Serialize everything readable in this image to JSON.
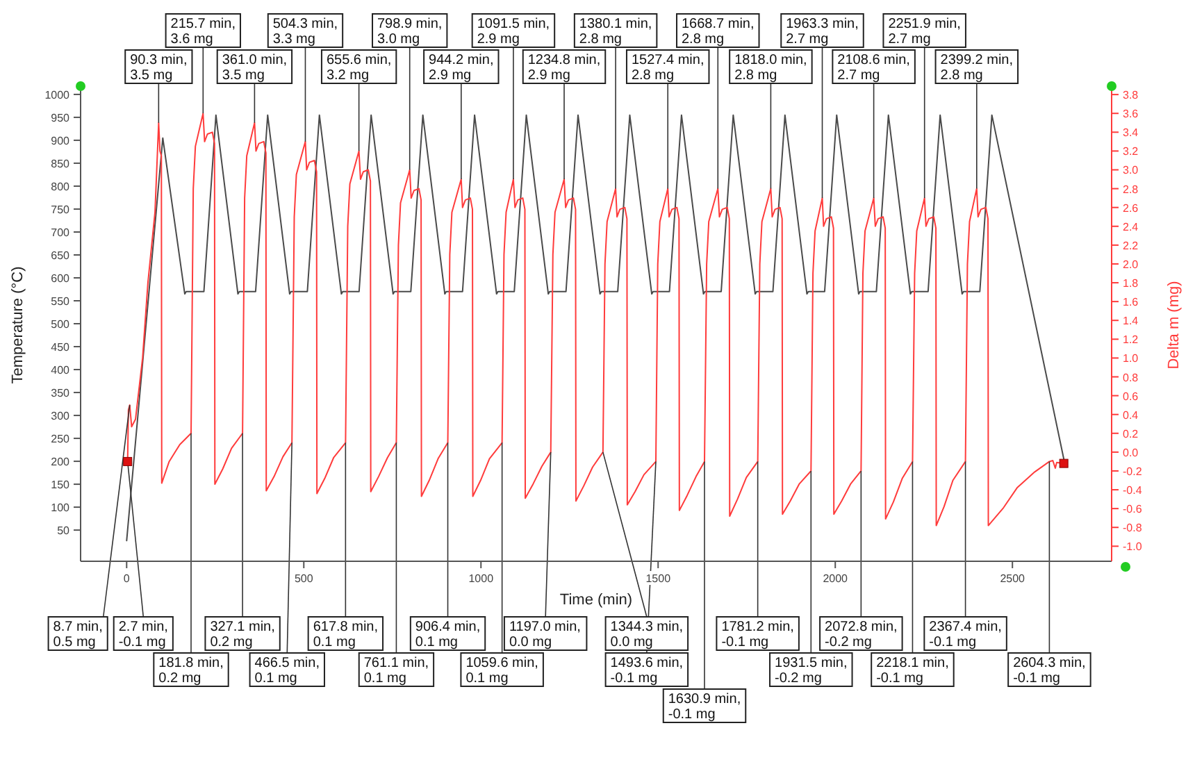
{
  "chart_data": {
    "type": "line",
    "xlabel": "Time (min)",
    "ylabel": "Temperature (°C)",
    "y2label": "Delta m (mg)",
    "xlim": [
      -130,
      2780
    ],
    "ylim": [
      -18,
      1012
    ],
    "y2lim": [
      -1.16,
      3.86
    ],
    "xticks": [
      0,
      500,
      1000,
      1500,
      2000,
      2500
    ],
    "yticks": [
      50,
      100,
      150,
      200,
      250,
      300,
      350,
      400,
      450,
      500,
      550,
      600,
      650,
      700,
      750,
      800,
      850,
      900,
      950,
      1000
    ],
    "y2ticks": [
      {
        "value": -1,
        "label": "-1.0"
      },
      -0.8,
      -0.6,
      -0.4,
      -0.2,
      {
        "value": 0,
        "label": "0.0"
      },
      0.2,
      0.4,
      0.6,
      0.8,
      {
        "value": 1,
        "label": "1.0"
      },
      1.2,
      1.4,
      1.6,
      1.8,
      {
        "value": 2,
        "label": "2.0"
      },
      2.2,
      2.4,
      2.6,
      2.8,
      {
        "value": 3,
        "label": "3.0"
      },
      3.2,
      3.4,
      3.6,
      3.8
    ],
    "series": [
      {
        "color": "#4a4a4a",
        "x": [
          0,
          102,
          164,
          168,
          218,
          252,
          314,
          318,
          364,
          398,
          460,
          464,
          510,
          544,
          606,
          610,
          656,
          690,
          752,
          756,
          802,
          836,
          898,
          902,
          948,
          982,
          1044,
          1048,
          1094,
          1128,
          1190,
          1194,
          1240,
          1274,
          1336,
          1340,
          1386,
          1420,
          1482,
          1486,
          1532,
          1566,
          1628,
          1632,
          1678,
          1712,
          1774,
          1778,
          1824,
          1858,
          1920,
          1924,
          1970,
          2004,
          2066,
          2070,
          2116,
          2150,
          2212,
          2216,
          2262,
          2296,
          2358,
          2362,
          2408,
          2442,
          2645
        ],
        "values": [
          27,
          905,
          565,
          570,
          570,
          955,
          565,
          570,
          570,
          955,
          565,
          570,
          570,
          955,
          565,
          570,
          570,
          955,
          565,
          570,
          570,
          955,
          565,
          570,
          570,
          955,
          565,
          570,
          570,
          955,
          565,
          570,
          570,
          955,
          565,
          570,
          570,
          955,
          565,
          570,
          570,
          955,
          565,
          570,
          570,
          955,
          565,
          570,
          570,
          955,
          565,
          570,
          570,
          955,
          565,
          570,
          570,
          955,
          565,
          570,
          570,
          955,
          565,
          570,
          570,
          955,
          205
        ]
      },
      {
        "axis": "y2",
        "color": "#ff3b3b",
        "x": [
          2.7,
          5,
          8.7,
          14,
          25,
          45,
          60,
          80,
          90.3,
          94,
          98,
          99,
          120,
          150,
          181.8,
          188,
          194,
          215.7,
          220,
          228,
          242,
          248,
          249,
          271,
          296,
          327.1,
          333,
          339,
          361.0,
          365,
          373,
          387,
          393,
          394,
          416,
          441,
          466.5,
          473,
          479,
          504.3,
          508,
          516,
          530,
          536,
          537,
          559,
          584,
          617.8,
          624,
          630,
          655.6,
          660,
          668,
          682,
          688,
          689,
          711,
          736,
          761.1,
          767,
          773,
          798.9,
          803,
          811,
          825,
          831,
          832,
          854,
          879,
          906.4,
          912,
          918,
          944.2,
          948,
          956,
          970,
          976,
          977,
          999,
          1024,
          1059.6,
          1065,
          1071,
          1091.5,
          1096,
          1104,
          1118,
          1124,
          1125,
          1147,
          1172,
          1197.0,
          1203,
          1209,
          1234.8,
          1239,
          1247,
          1261,
          1267,
          1268,
          1290,
          1315,
          1344.3,
          1350,
          1356,
          1380.1,
          1384,
          1392,
          1406,
          1412,
          1413,
          1435,
          1460,
          1493.6,
          1499,
          1505,
          1527.4,
          1531,
          1539,
          1553,
          1559,
          1560,
          1582,
          1607,
          1630.9,
          1637,
          1643,
          1668.7,
          1673,
          1681,
          1695,
          1701,
          1702,
          1724,
          1749,
          1781.2,
          1787,
          1793,
          1818.0,
          1822,
          1830,
          1844,
          1850,
          1851,
          1873,
          1898,
          1931.5,
          1937,
          1943,
          1963.3,
          1967,
          1975,
          1989,
          1995,
          1996,
          2018,
          2043,
          2072.8,
          2078,
          2084,
          2108.6,
          2113,
          2121,
          2135,
          2141,
          2142,
          2164,
          2189,
          2218.1,
          2224,
          2230,
          2251.9,
          2256,
          2264,
          2278,
          2284,
          2285,
          2307,
          2332,
          2367.4,
          2373,
          2379,
          2399.2,
          2403,
          2411,
          2425,
          2431,
          2432,
          2475,
          2513,
          2563,
          2604.3,
          2614,
          2621,
          2625,
          2645
        ],
        "values": [
          -0.1,
          0.45,
          0.5,
          0.27,
          0.35,
          1.0,
          1.8,
          2.55,
          3.5,
          3.2,
          3.15,
          -0.33,
          -0.1,
          0.08,
          0.2,
          2.8,
          3.25,
          3.6,
          3.3,
          3.38,
          3.4,
          3.28,
          -0.34,
          -0.18,
          0.04,
          0.2,
          2.7,
          3.15,
          3.5,
          3.2,
          3.28,
          3.3,
          3.18,
          -0.41,
          -0.26,
          -0.05,
          0.1,
          2.5,
          2.95,
          3.3,
          3.0,
          3.08,
          3.1,
          2.98,
          -0.44,
          -0.28,
          -0.06,
          0.1,
          2.4,
          2.85,
          3.2,
          2.9,
          2.98,
          3.0,
          2.88,
          -0.42,
          -0.26,
          -0.06,
          0.1,
          2.2,
          2.65,
          3.0,
          2.7,
          2.78,
          2.8,
          2.68,
          -0.47,
          -0.3,
          -0.07,
          0.1,
          2.1,
          2.55,
          2.9,
          2.6,
          2.68,
          2.7,
          2.58,
          -0.47,
          -0.3,
          -0.07,
          0.1,
          2.1,
          2.55,
          2.9,
          2.6,
          2.68,
          2.7,
          2.58,
          -0.49,
          -0.34,
          -0.15,
          0.0,
          2.1,
          2.55,
          2.9,
          2.6,
          2.68,
          2.7,
          2.58,
          -0.52,
          -0.36,
          -0.16,
          0.0,
          2.0,
          2.45,
          2.8,
          2.5,
          2.58,
          2.6,
          2.48,
          -0.56,
          -0.42,
          -0.24,
          -0.1,
          2.0,
          2.45,
          2.8,
          2.5,
          2.58,
          2.6,
          2.48,
          -0.62,
          -0.46,
          -0.26,
          -0.1,
          2.0,
          2.45,
          2.8,
          2.5,
          2.58,
          2.6,
          2.48,
          -0.68,
          -0.5,
          -0.27,
          -0.1,
          2.0,
          2.45,
          2.8,
          2.5,
          2.58,
          2.6,
          2.48,
          -0.66,
          -0.52,
          -0.34,
          -0.2,
          1.9,
          2.35,
          2.7,
          2.4,
          2.48,
          2.5,
          2.38,
          -0.66,
          -0.52,
          -0.34,
          -0.2,
          1.9,
          2.35,
          2.7,
          2.4,
          2.48,
          2.5,
          2.38,
          -0.71,
          -0.53,
          -0.28,
          -0.1,
          1.9,
          2.35,
          2.7,
          2.4,
          2.48,
          2.5,
          2.38,
          -0.78,
          -0.58,
          -0.3,
          -0.1,
          2.0,
          2.45,
          2.8,
          2.5,
          2.58,
          2.6,
          2.48,
          -0.78,
          -0.59,
          -0.38,
          -0.21,
          -0.1,
          -0.09,
          -0.17,
          -0.11,
          -0.12
        ]
      }
    ],
    "annotations": [
      {
        "text": "90.3 min,3.5 mg",
        "x": 90.3,
        "y": 938.1
      },
      {
        "text": "215.7 min,3.6 mg",
        "x": 215.7,
        "y": 958.7
      },
      {
        "text": "361.0 min,3.5 mg",
        "x": 361.0,
        "y": 938.1
      },
      {
        "text": "504.3 min,3.3 mg",
        "x": 504.3,
        "y": 897.1
      },
      {
        "text": "655.6 min,3.2 mg",
        "x": 655.6,
        "y": 876.6
      },
      {
        "text": "798.9 min,3.0 mg",
        "x": 798.9,
        "y": 835.6
      },
      {
        "text": "944.2 min,2.9 mg",
        "x": 944.2,
        "y": 815.0
      },
      {
        "text": "1091.5 min,2.9 mg",
        "x": 1091.5,
        "y": 815.0
      },
      {
        "text": "1234.8 min,2.9 mg",
        "x": 1234.8,
        "y": 815.0
      },
      {
        "text": "1380.1 min,2.8 mg",
        "x": 1380.1,
        "y": 794.5
      },
      {
        "text": "1527.4 min,2.8 mg",
        "x": 1527.4,
        "y": 794.5
      },
      {
        "text": "1668.7 min,2.8 mg",
        "x": 1668.7,
        "y": 794.5
      },
      {
        "text": "1818.0 min,2.8 mg",
        "x": 1818.0,
        "y": 794.5
      },
      {
        "text": "1963.3 min,2.7 mg",
        "x": 1963.3,
        "y": 774.0
      },
      {
        "text": "2108.6 min,2.7 mg",
        "x": 2108.6,
        "y": 774.0
      },
      {
        "text": "2251.9 min,2.7 mg",
        "x": 2251.9,
        "y": 774.0
      },
      {
        "text": "2399.2 min,2.8 mg",
        "x": 2399.2,
        "y": 794.5
      },
      {
        "text": "8.7 min,0.5 mg",
        "x": 8.7,
        "y": 322.6
      },
      {
        "text": "2.7 min,-0.1 mg",
        "x": 2.7,
        "y": 199.5
      },
      {
        "text": "181.8 min,0.2 mg",
        "x": 181.8,
        "y": 261.0
      },
      {
        "text": "327.1 min,0.2 mg",
        "x": 327.1,
        "y": 261.0
      },
      {
        "text": "466.5 min,0.1 mg",
        "x": 466.5,
        "y": 240.5
      },
      {
        "text": "617.8 min,0.1 mg",
        "x": 617.8,
        "y": 240.5
      },
      {
        "text": "761.1 min,0.1 mg",
        "x": 761.1,
        "y": 240.5
      },
      {
        "text": "906.4 min,0.1 mg",
        "x": 906.4,
        "y": 240.5
      },
      {
        "text": "1059.6 min,0.1 mg",
        "x": 1059.6,
        "y": 240.5
      },
      {
        "text": "1197.0 min,0.0 mg",
        "x": 1197.0,
        "y": 220.0
      },
      {
        "text": "1344.3 min,0.0 mg",
        "x": 1344.3,
        "y": 220.0
      },
      {
        "text": "1493.6 min,-0.1 mg",
        "x": 1493.6,
        "y": 199.5
      },
      {
        "text": "1630.9 min,-0.1 mg",
        "x": 1630.9,
        "y": 199.5
      },
      {
        "text": "1781.2 min,-0.1 mg",
        "x": 1781.2,
        "y": 199.5
      },
      {
        "text": "1931.5 min,-0.2 mg",
        "x": 1931.5,
        "y": 179.0
      },
      {
        "text": "2072.8 min,-0.2 mg",
        "x": 2072.8,
        "y": 179.0
      },
      {
        "text": "2218.1 min,-0.1 mg",
        "x": 2218.1,
        "y": 199.5
      },
      {
        "text": "2367.4 min,-0.1 mg",
        "x": 2367.4,
        "y": 199.5
      },
      {
        "text": "2604.3 min,-0.1 mg",
        "x": 2604.3,
        "y": 199.5
      }
    ]
  }
}
